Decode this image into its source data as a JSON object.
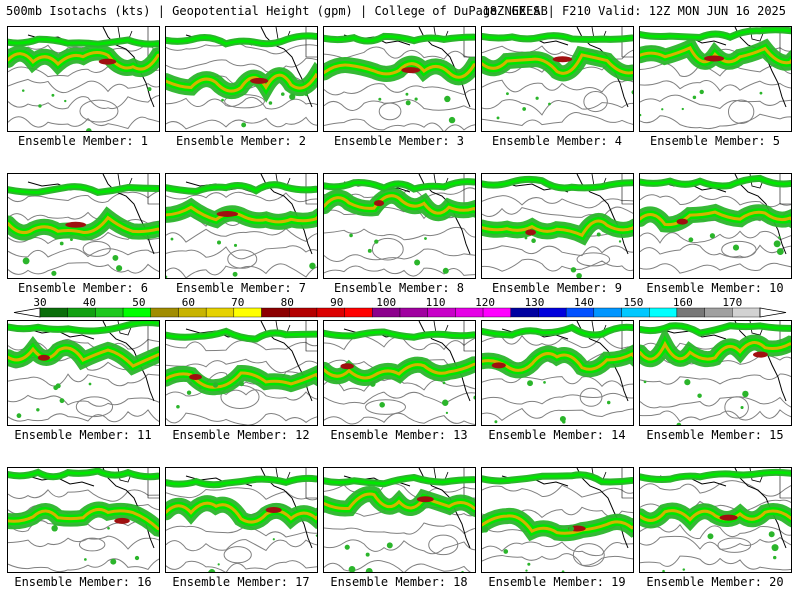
{
  "header": {
    "left": "500mb Isotachs (kts) | Geopotential Height (gpm) | College of DuPage NEXLAB",
    "right": "18Z GEFS | F210 Valid: 12Z MON JUN 16 2025"
  },
  "members": [
    {
      "label": "Ensemble Member: 1"
    },
    {
      "label": "Ensemble Member: 2"
    },
    {
      "label": "Ensemble Member: 3"
    },
    {
      "label": "Ensemble Member: 4"
    },
    {
      "label": "Ensemble Member: 5"
    },
    {
      "label": "Ensemble Member: 6"
    },
    {
      "label": "Ensemble Member: 7"
    },
    {
      "label": "Ensemble Member: 8"
    },
    {
      "label": "Ensemble Member: 9"
    },
    {
      "label": "Ensemble Member: 10"
    },
    {
      "label": "Ensemble Member: 11"
    },
    {
      "label": "Ensemble Member: 12"
    },
    {
      "label": "Ensemble Member: 13"
    },
    {
      "label": "Ensemble Member: 14"
    },
    {
      "label": "Ensemble Member: 15"
    },
    {
      "label": "Ensemble Member: 16"
    },
    {
      "label": "Ensemble Member: 17"
    },
    {
      "label": "Ensemble Member: 18"
    },
    {
      "label": "Ensemble Member: 19"
    },
    {
      "label": "Ensemble Member: 20"
    }
  ],
  "colorbar": {
    "ticks": [
      "30",
      "40",
      "50",
      "60",
      "70",
      "80",
      "90",
      "100",
      "110",
      "120",
      "130",
      "140",
      "150",
      "160",
      "170"
    ],
    "colors": [
      "#0a6e0a",
      "#12a012",
      "#1ec81e",
      "#00ff00",
      "#a08c00",
      "#c8b400",
      "#e6d200",
      "#ffff00",
      "#8c0000",
      "#b40000",
      "#dc0000",
      "#ff0000",
      "#8c008c",
      "#a000a0",
      "#c800c8",
      "#e600e6",
      "#ff00ff",
      "#0000a0",
      "#0000dc",
      "#0050ff",
      "#0096ff",
      "#00c8ff",
      "#00ffff",
      "#787878",
      "#a0a0a0",
      "#d2d2d2"
    ]
  },
  "map_colors": {
    "jet_light": "#2bb52b",
    "jet_mid": "#00e600",
    "jet_core": "#d2b400",
    "jet_max": "#a01010",
    "height_contour": "#808080",
    "coast": "#000000"
  }
}
